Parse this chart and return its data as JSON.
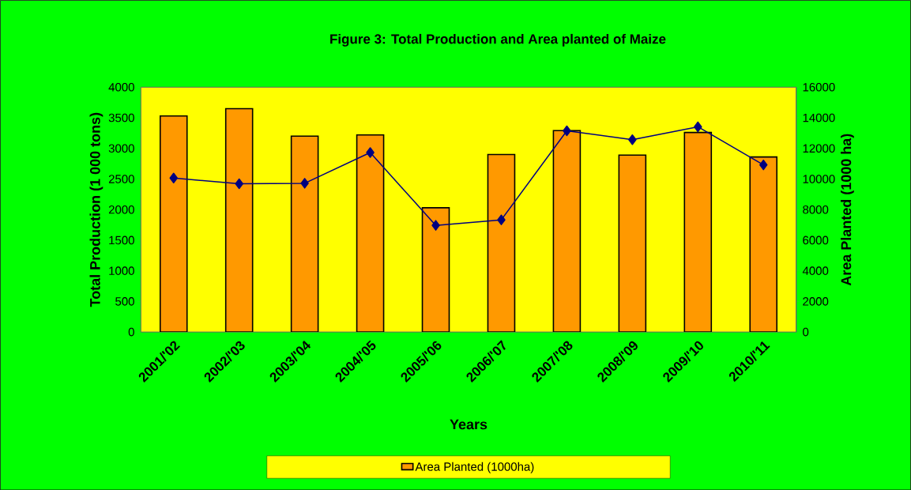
{
  "chart_data": {
    "type": "bar",
    "title": "Figure 3: Total Production and Area planted of Maize",
    "xlabel": "Years",
    "ylabel": "Total Production (1 000 tons)",
    "y2label": "Area Planted (1000 ha)",
    "categories": [
      "2001/'02",
      "2002/'03",
      "2003/'04",
      "2004/'05",
      "2005/'06",
      "2006/'07",
      "2007/'08",
      "2008/'09",
      "2009/'10",
      "2010/'11"
    ],
    "series": [
      {
        "name": "Area Planted (1000ha)",
        "color": "#ff9900",
        "values": [
          3530,
          3650,
          3200,
          3220,
          2030,
          2900,
          3290,
          2890,
          3260,
          2860
        ]
      },
      {
        "type": "line",
        "axis": "y2",
        "color": "#000080",
        "values": [
          10060,
          9690,
          9720,
          11730,
          6970,
          7330,
          13150,
          12570,
          13410,
          10920
        ]
      }
    ],
    "ylim": [
      0,
      4000
    ],
    "yticks": [
      0,
      500,
      1000,
      1500,
      2000,
      2500,
      3000,
      3500,
      4000
    ],
    "y2lim": [
      0,
      16000
    ],
    "y2ticks": [
      0,
      2000,
      4000,
      6000,
      8000,
      10000,
      12000,
      14000,
      16000
    ],
    "marker": "diamond",
    "legend": "bottom"
  }
}
